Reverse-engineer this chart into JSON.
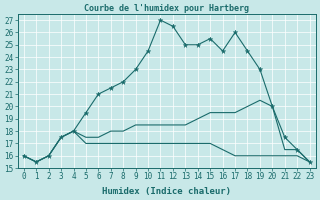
{
  "title": "Courbe de l'humidex pour Hartberg",
  "xlabel": "Humidex (Indice chaleur)",
  "bg_color": "#c8e8e8",
  "line_color": "#1a6b6b",
  "grid_color": "#ffffff",
  "xlim": [
    -0.5,
    23.5
  ],
  "ylim": [
    15,
    27.5
  ],
  "yticks": [
    15,
    16,
    17,
    18,
    19,
    20,
    21,
    22,
    23,
    24,
    25,
    26,
    27
  ],
  "xticks": [
    0,
    1,
    2,
    3,
    4,
    5,
    6,
    7,
    8,
    9,
    10,
    11,
    12,
    13,
    14,
    15,
    16,
    17,
    18,
    19,
    20,
    21,
    22,
    23
  ],
  "line1_x": [
    0,
    1,
    2,
    3,
    4,
    5,
    6,
    7,
    8,
    9,
    10,
    11,
    12,
    13,
    14,
    15,
    16,
    17,
    18,
    19,
    20,
    21,
    22,
    23
  ],
  "line1_y": [
    16.0,
    15.5,
    16.0,
    17.5,
    18.0,
    19.5,
    21.0,
    21.5,
    22.0,
    23.0,
    24.5,
    27.0,
    26.5,
    25.0,
    25.0,
    25.5,
    24.5,
    26.0,
    24.5,
    23.0,
    20.0,
    17.5,
    16.5,
    15.5
  ],
  "line2_x": [
    0,
    1,
    2,
    3,
    4,
    5,
    6,
    7,
    8,
    9,
    10,
    11,
    12,
    13,
    14,
    15,
    16,
    17,
    18,
    19,
    20,
    21,
    22,
    23
  ],
  "line2_y": [
    16.0,
    15.5,
    16.0,
    17.5,
    18.0,
    17.0,
    17.0,
    17.0,
    17.0,
    17.0,
    17.0,
    17.0,
    17.0,
    17.0,
    17.0,
    17.0,
    16.5,
    16.0,
    16.0,
    16.0,
    16.0,
    16.0,
    16.0,
    15.5
  ],
  "line3_x": [
    0,
    1,
    2,
    3,
    4,
    5,
    6,
    7,
    8,
    9,
    10,
    11,
    12,
    13,
    14,
    15,
    16,
    17,
    18,
    19,
    20,
    21,
    22,
    23
  ],
  "line3_y": [
    16.0,
    15.5,
    16.0,
    17.5,
    18.0,
    17.5,
    17.5,
    18.0,
    18.0,
    18.5,
    18.5,
    18.5,
    18.5,
    18.5,
    19.0,
    19.5,
    19.5,
    19.5,
    20.0,
    20.5,
    20.0,
    16.5,
    16.5,
    15.5
  ],
  "tick_fontsize": 5.5,
  "xlabel_fontsize": 6.5,
  "title_fontsize": 6.0
}
